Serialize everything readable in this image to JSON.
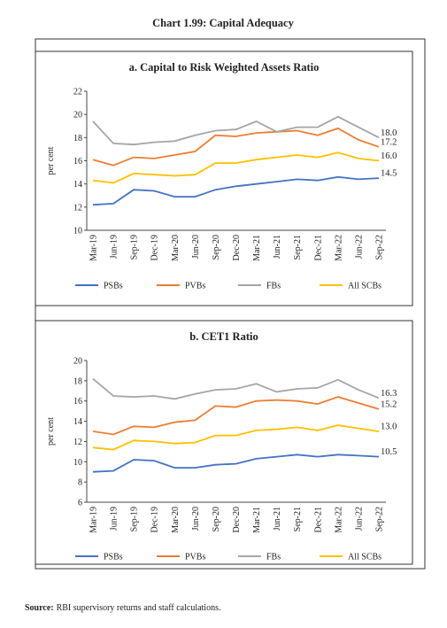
{
  "title": "Chart 1.99: Capital Adequacy",
  "chart_data": [
    {
      "type": "line",
      "title": "a. Capital to Risk Weighted Assets Ratio",
      "y_label": "per cent",
      "categories": [
        "Mar-19",
        "Jun-19",
        "Sep-19",
        "Dec-19",
        "Mar-20",
        "Jun-20",
        "Sep-20",
        "Dec-20",
        "Mar-21",
        "Jun-21",
        "Sep-21",
        "Dec-21",
        "Mar-22",
        "Jun-22",
        "Sep-22"
      ],
      "ylim": [
        10,
        22
      ],
      "yticks": [
        10,
        12,
        14,
        16,
        18,
        20,
        22
      ],
      "grid": false,
      "series": [
        {
          "name": "PSBs",
          "color": "#4472c4",
          "values": [
            12.2,
            12.3,
            13.5,
            13.4,
            12.9,
            12.9,
            13.5,
            13.8,
            14.0,
            14.2,
            14.4,
            14.3,
            14.6,
            14.4,
            14.5
          ],
          "value_labels": [
            null,
            null,
            null,
            null,
            null,
            null,
            null,
            null,
            null,
            null,
            null,
            null,
            null,
            null,
            "14.5"
          ]
        },
        {
          "name": "PVBs",
          "color": "#ed7d31",
          "values": [
            16.1,
            15.6,
            16.3,
            16.2,
            16.5,
            16.8,
            18.2,
            18.1,
            18.4,
            18.5,
            18.6,
            18.2,
            18.8,
            17.8,
            17.2
          ],
          "value_labels": [
            null,
            null,
            null,
            null,
            null,
            null,
            null,
            null,
            null,
            null,
            null,
            null,
            null,
            null,
            "17.2"
          ]
        },
        {
          "name": "FBs",
          "color": "#a5a5a5",
          "values": [
            19.4,
            17.5,
            17.4,
            17.6,
            17.7,
            18.2,
            18.6,
            18.7,
            19.4,
            18.5,
            18.9,
            18.9,
            19.8,
            18.9,
            18.0
          ],
          "value_labels": [
            null,
            null,
            null,
            null,
            null,
            null,
            null,
            null,
            null,
            null,
            null,
            null,
            null,
            null,
            "18.0"
          ]
        },
        {
          "name": "All SCBs",
          "color": "#ffc000",
          "values": [
            14.3,
            14.1,
            14.9,
            14.8,
            14.7,
            14.8,
            15.8,
            15.8,
            16.1,
            16.3,
            16.5,
            16.3,
            16.7,
            16.2,
            16.0
          ],
          "value_labels": [
            null,
            null,
            null,
            null,
            null,
            null,
            null,
            null,
            null,
            null,
            null,
            null,
            null,
            null,
            "16.0"
          ]
        }
      ]
    },
    {
      "type": "line",
      "title": "b. CET1 Ratio",
      "y_label": "per cent",
      "categories": [
        "Mar-19",
        "Jun-19",
        "Sep-19",
        "Dec-19",
        "Mar-20",
        "Jun-20",
        "Sep-20",
        "Dec-20",
        "Mar-21",
        "Jun-21",
        "Sep-21",
        "Dec-21",
        "Mar-22",
        "Jun-22",
        "Sep-22"
      ],
      "ylim": [
        6,
        20
      ],
      "yticks": [
        6,
        8,
        10,
        12,
        14,
        16,
        18,
        20
      ],
      "grid": false,
      "series": [
        {
          "name": "PSBs",
          "color": "#4472c4",
          "values": [
            9.0,
            9.1,
            10.2,
            10.1,
            9.4,
            9.4,
            9.7,
            9.8,
            10.3,
            10.5,
            10.7,
            10.5,
            10.7,
            10.6,
            10.5
          ],
          "value_labels": [
            null,
            null,
            null,
            null,
            null,
            null,
            null,
            null,
            null,
            null,
            null,
            null,
            null,
            null,
            "10.5"
          ]
        },
        {
          "name": "PVBs",
          "color": "#ed7d31",
          "values": [
            13.0,
            12.7,
            13.5,
            13.4,
            13.9,
            14.1,
            15.5,
            15.4,
            16.0,
            16.1,
            16.0,
            15.7,
            16.4,
            15.8,
            15.2
          ],
          "value_labels": [
            null,
            null,
            null,
            null,
            null,
            null,
            null,
            null,
            null,
            null,
            null,
            null,
            null,
            null,
            "15.2"
          ]
        },
        {
          "name": "FBs",
          "color": "#a5a5a5",
          "values": [
            18.2,
            16.5,
            16.4,
            16.5,
            16.2,
            16.7,
            17.1,
            17.2,
            17.7,
            16.9,
            17.2,
            17.3,
            18.1,
            17.1,
            16.3
          ],
          "value_labels": [
            null,
            null,
            null,
            null,
            null,
            null,
            null,
            null,
            null,
            null,
            null,
            null,
            null,
            null,
            "16.3"
          ]
        },
        {
          "name": "All SCBs",
          "color": "#ffc000",
          "values": [
            11.4,
            11.2,
            12.1,
            12.0,
            11.8,
            11.9,
            12.6,
            12.6,
            13.1,
            13.2,
            13.4,
            13.1,
            13.6,
            13.3,
            13.0
          ],
          "value_labels": [
            null,
            null,
            null,
            null,
            null,
            null,
            null,
            null,
            null,
            null,
            null,
            null,
            null,
            null,
            "13.0"
          ]
        }
      ]
    }
  ],
  "source": {
    "label": "Source:",
    "text": "RBI supervisory returns and staff calculations."
  }
}
